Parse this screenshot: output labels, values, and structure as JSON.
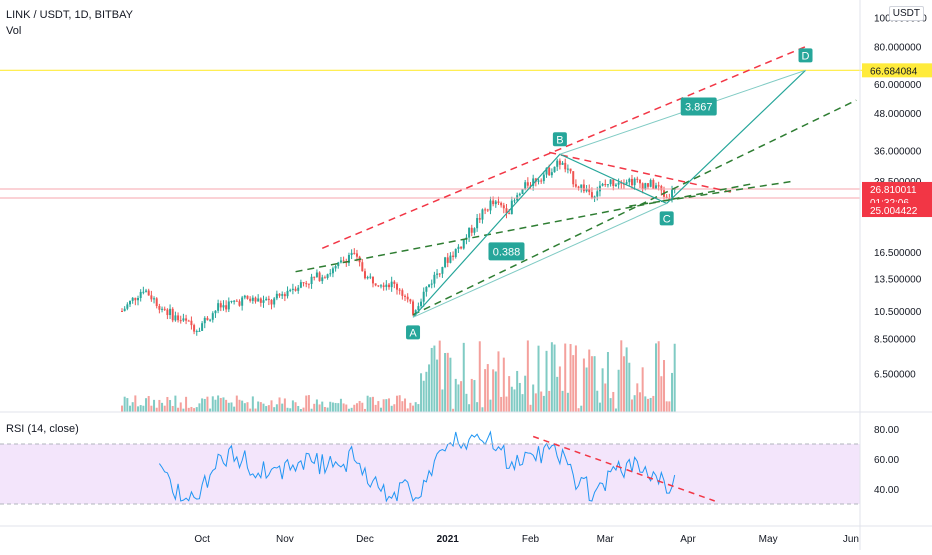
{
  "header": {
    "symbol_title": "LINK / USDT, 1D, BITBAY",
    "volume_label": "Vol",
    "rsi_label": "RSI (14, close)",
    "currency": "USDT"
  },
  "price_axis": {
    "scale": "log",
    "ticks": [
      "100.000000",
      "80.000000",
      "60.000000",
      "48.000000",
      "36.000000",
      "28.500000",
      "16.500000",
      "13.500000",
      "10.500000",
      "8.500000",
      "6.500000"
    ],
    "tick_values": [
      100,
      80,
      60,
      48,
      36,
      28.5,
      16.5,
      13.5,
      10.5,
      8.5,
      6.5
    ],
    "markers": [
      {
        "label": "66.684084",
        "value": 66.684084,
        "color": "#ffeb3b",
        "text_color": "#131722"
      },
      {
        "label": "26.810011",
        "value": 26.81,
        "color": "#f23645",
        "text_color": "#ffffff"
      },
      {
        "label": "01:32:06",
        "value": 0,
        "color": "#f23645",
        "text_color": "#ffffff"
      },
      {
        "label": "25.004422",
        "value": 25.004422,
        "color": "#f23645",
        "text_color": "#ffffff"
      }
    ]
  },
  "rsi_axis": {
    "ticks": [
      "80.00",
      "60.00",
      "40.00"
    ],
    "tick_values": [
      80,
      60,
      40
    ],
    "band": [
      30,
      70
    ]
  },
  "time_axis": {
    "labels": [
      "Oct",
      "Nov",
      "Dec",
      "2021",
      "Feb",
      "Mar",
      "Apr",
      "May",
      "Jun"
    ],
    "label_days": [
      30,
      61,
      91,
      122,
      153,
      181,
      212,
      242,
      273
    ],
    "bold": [
      "2021"
    ]
  },
  "colors": {
    "up": "#26a69a",
    "down": "#ef5350",
    "vol_up": "#80cbc4",
    "vol_down": "#f4a09c",
    "pattern_line": "#26a69a",
    "red_dash": "#f23645",
    "green_dash": "#2e7d32",
    "rsi_line": "#2196f3",
    "rsi_band": "#f3e5fb",
    "yellow_line": "#ffeb3b"
  },
  "pattern": {
    "points": [
      {
        "label": "A",
        "day": 109,
        "price": 10.0
      },
      {
        "label": "B",
        "day": 164,
        "price": 35.0
      },
      {
        "label": "C",
        "day": 204,
        "price": 24.0
      },
      {
        "label": "D",
        "day": 256,
        "price": 66.684084
      }
    ],
    "ratios": [
      {
        "label": "0.388",
        "day": 144,
        "price": 16.6
      },
      {
        "label": "3.867",
        "day": 216,
        "price": 50.5
      }
    ]
  },
  "chart_data": {
    "type": "candlestick",
    "title": "LINK / USDT, 1D, BITBAY",
    "y_scale": "log",
    "x_axis": "days since 2020-09-01",
    "ylim": [
      5.3,
      106
    ],
    "anchors": [
      {
        "day": 0,
        "close": 10.5
      },
      {
        "day": 8,
        "close": 12.5
      },
      {
        "day": 14,
        "close": 11.0
      },
      {
        "day": 20,
        "close": 10.0
      },
      {
        "day": 28,
        "close": 9.2
      },
      {
        "day": 36,
        "close": 10.8
      },
      {
        "day": 46,
        "close": 11.5
      },
      {
        "day": 56,
        "close": 11.2
      },
      {
        "day": 63,
        "close": 12.5
      },
      {
        "day": 72,
        "close": 13.5
      },
      {
        "day": 80,
        "close": 14.5
      },
      {
        "day": 86,
        "close": 16.5
      },
      {
        "day": 92,
        "close": 13.5
      },
      {
        "day": 100,
        "close": 13.0
      },
      {
        "day": 104,
        "close": 12.5
      },
      {
        "day": 109,
        "close": 10.5
      },
      {
        "day": 114,
        "close": 12.5
      },
      {
        "day": 120,
        "close": 15.0
      },
      {
        "day": 127,
        "close": 17.5
      },
      {
        "day": 133,
        "close": 21.0
      },
      {
        "day": 138,
        "close": 24.0
      },
      {
        "day": 145,
        "close": 23.0
      },
      {
        "day": 152,
        "close": 28.0
      },
      {
        "day": 158,
        "close": 30.0
      },
      {
        "day": 164,
        "close": 33.0
      },
      {
        "day": 170,
        "close": 28.0
      },
      {
        "day": 176,
        "close": 26.0
      },
      {
        "day": 182,
        "close": 28.0
      },
      {
        "day": 188,
        "close": 29.0
      },
      {
        "day": 194,
        "close": 28.0
      },
      {
        "day": 200,
        "close": 27.5
      },
      {
        "day": 204,
        "close": 25.0
      },
      {
        "day": 207,
        "close": 26.81
      }
    ]
  }
}
